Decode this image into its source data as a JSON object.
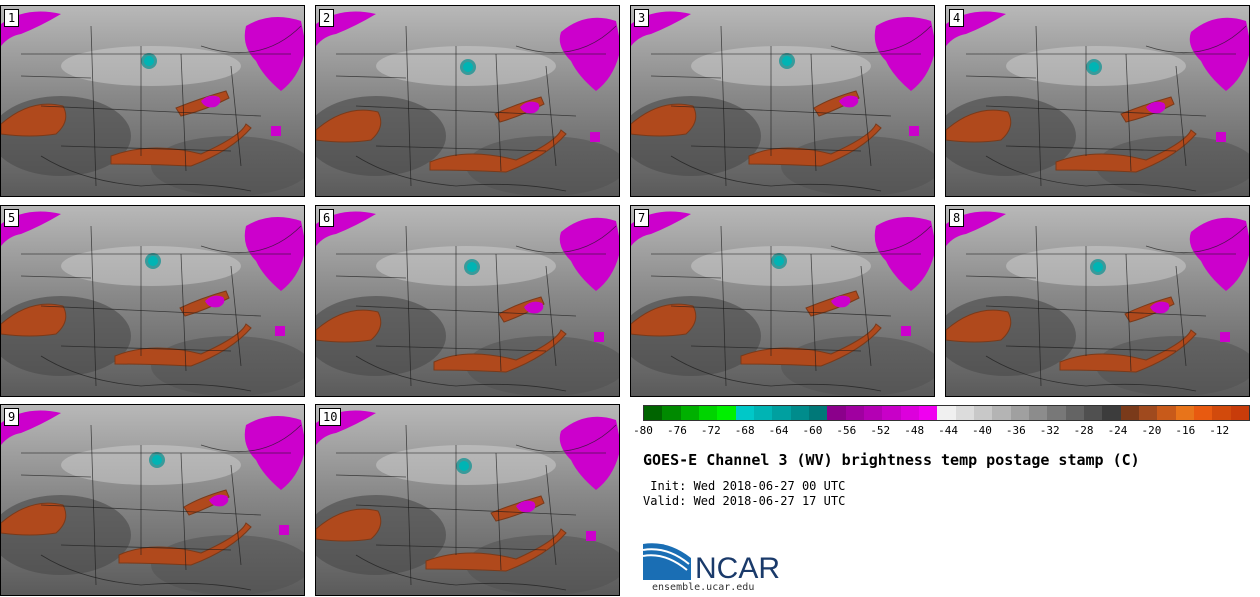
{
  "panels": [
    {
      "label": "1"
    },
    {
      "label": "2"
    },
    {
      "label": "3"
    },
    {
      "label": "4"
    },
    {
      "label": "5"
    },
    {
      "label": "6"
    },
    {
      "label": "7"
    },
    {
      "label": "8"
    },
    {
      "label": "9"
    },
    {
      "label": "10"
    }
  ],
  "colorbar": {
    "colors": [
      "#006400",
      "#008a00",
      "#00b000",
      "#00d400",
      "#00f000",
      "#00c8c8",
      "#00b4b4",
      "#00a0a0",
      "#008c8c",
      "#007878",
      "#8b008b",
      "#a000a0",
      "#b400b4",
      "#c800c8",
      "#dc00dc",
      "#f000f0",
      "#f0f0f0",
      "#dcdcdc",
      "#c8c8c8",
      "#b4b4b4",
      "#a0a0a0",
      "#8c8c8c",
      "#787878",
      "#646464",
      "#505050",
      "#3c3c3c",
      "#7a3a1a",
      "#a04a1e",
      "#c85a1a",
      "#e8741a",
      "#e85a10",
      "#d24a0c",
      "#c83c0a"
    ],
    "tick_labels": [
      "-80",
      "-76",
      "-72",
      "-68",
      "-64",
      "-60",
      "-56",
      "-52",
      "-48",
      "-44",
      "-40",
      "-36",
      "-32",
      "-28",
      "-24",
      "-20",
      "-16",
      "-12"
    ]
  },
  "title": "GOES-E Channel 3 (WV) brightness temp postage stamp (C)",
  "init": " Init: Wed 2018-06-27 00 UTC",
  "valid": "Valid: Wed 2018-06-27 17 UTC",
  "logo_text": "NCAR",
  "url": "ensemble.ucar.edu"
}
